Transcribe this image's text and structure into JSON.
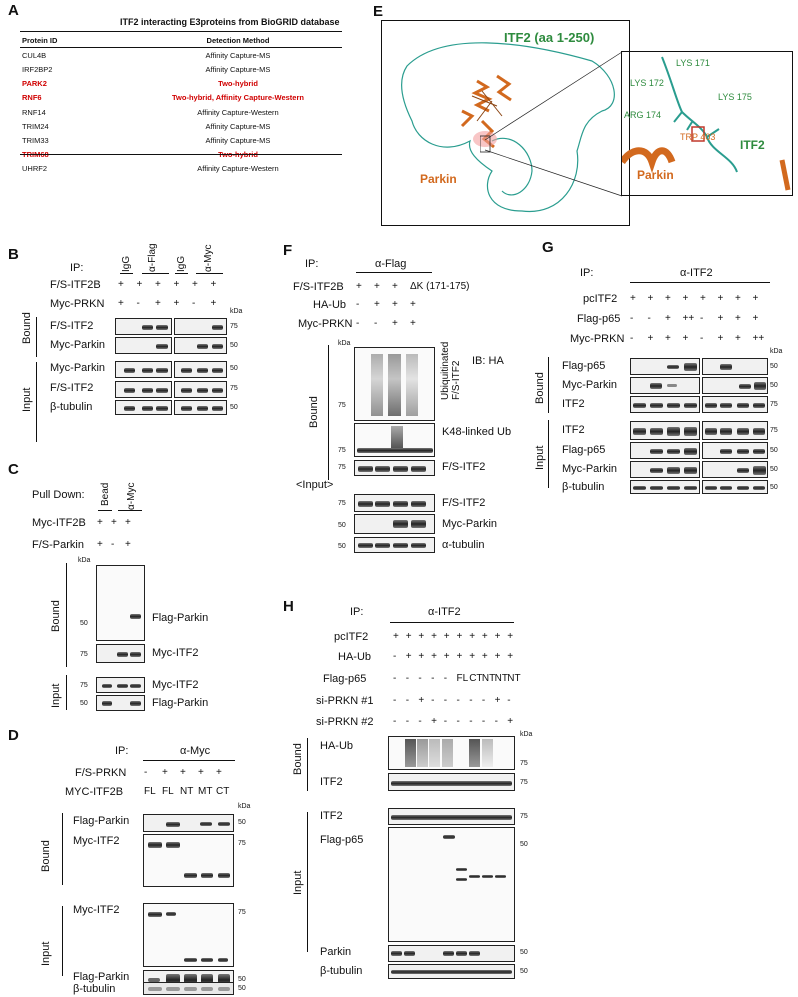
{
  "panels": {
    "A": "A",
    "B": "B",
    "C": "C",
    "D": "D",
    "E": "E",
    "F": "F",
    "G": "G",
    "H": "H"
  },
  "panelA": {
    "title": "ITF2 interacting E3proteins from BioGRID database",
    "col_protein": "Protein ID",
    "col_method": "Detection Method",
    "rows": [
      {
        "protein": "CUL4B",
        "method": "Affinity Capture-MS",
        "highlight": false
      },
      {
        "protein": "IRF2BP2",
        "method": "Affinity Capture-MS",
        "highlight": false
      },
      {
        "protein": "PARK2",
        "method": "Two-hybrid",
        "highlight": true
      },
      {
        "protein": "RNF6",
        "method": "Two-hybrid, Affinity Capture-Western",
        "highlight": true
      },
      {
        "protein": "RNF14",
        "method": "Affinity Capture-Western",
        "highlight": false
      },
      {
        "protein": "TRIM24",
        "method": "Affinity Capture-MS",
        "highlight": false
      },
      {
        "protein": "TRIM33",
        "method": "Affinity Capture-MS",
        "highlight": false
      },
      {
        "protein": "TRIM68",
        "method": "Two-hybrid",
        "highlight": true
      },
      {
        "protein": "UHRF2",
        "method": "Affinity Capture-Western",
        "highlight": false
      }
    ],
    "highlight_color": "#d00000"
  },
  "panelB": {
    "ip": "IP:",
    "lanes": [
      "IgG",
      "α-Flag",
      "IgG",
      "α-Myc"
    ],
    "row1": "F/S-ITF2B",
    "row1_vals": [
      "+",
      "+",
      "+",
      "+",
      "+",
      "+"
    ],
    "row2": "Myc-PRKN",
    "row2_vals": [
      "+",
      "-",
      "+",
      "+",
      "-",
      "+"
    ],
    "bound": "Bound",
    "input": "Input",
    "blots": [
      "F/S-ITF2",
      "Myc-Parkin",
      "Myc-Parkin",
      "F/S-ITF2",
      "β-tubulin"
    ],
    "kda": "kDa",
    "mw": [
      "75",
      "50",
      "50",
      "75",
      "50"
    ]
  },
  "panelC": {
    "pulldown": "Pull Down:",
    "lanes": [
      "Bead",
      "α-Myc"
    ],
    "row1": "Myc-ITF2B",
    "row1_vals": [
      "+",
      "+",
      "+"
    ],
    "row2": "F/S-Parkin",
    "row2_vals": [
      "+",
      "-",
      "+"
    ],
    "bound": "Bound",
    "input": "Input",
    "kda": "kDa",
    "blots": [
      "Flag-Parkin",
      "Myc-ITF2",
      "Myc-ITF2",
      "Flag-Parkin"
    ],
    "mw": [
      "50",
      "75",
      "75",
      "50"
    ]
  },
  "panelD": {
    "ip": "IP:",
    "ab": "α-Myc",
    "row1": "F/S-PRKN",
    "row1_vals": [
      "-",
      "+",
      "+",
      "+",
      "+"
    ],
    "row2": "MYC-ITF2B",
    "row2_vals": [
      "FL",
      "FL",
      "NT",
      "MT",
      "CT"
    ],
    "kda": "kDa",
    "bound": "Bound",
    "input": "Input",
    "blots": [
      "Flag-Parkin",
      "Myc-ITF2",
      "Myc-ITF2",
      "Flag-Parkin",
      "β-tubulin"
    ],
    "mw": [
      "50",
      "75",
      "75",
      "50",
      "50"
    ]
  },
  "panelE": {
    "itf2_label": "ITF2 (aa 1-250)",
    "parkin": "Parkin",
    "itf2_short": "ITF2",
    "residues": [
      "LYS 171",
      "LYS 172",
      "LYS 175",
      "ARG 174",
      "TRP 403"
    ],
    "green": "#2e8b3e",
    "orange": "#d2691e",
    "teal": "#2a9d8f"
  },
  "panelF": {
    "ip": "IP:",
    "ab": "α-Flag",
    "row1": "F/S-ITF2B",
    "row1_vals": [
      "+",
      "+",
      "+",
      "ΔK (171-175)"
    ],
    "row2": "HA-Ub",
    "row2_vals": [
      "-",
      "+",
      "+",
      "+"
    ],
    "row3": "Myc-PRKN",
    "row3_vals": [
      "-",
      "-",
      "+",
      "+"
    ],
    "kda": "kDa",
    "bound": "Bound",
    "input": "<Input>",
    "ub_label": "Ubiquitinated F/S-ITF2",
    "ib": "IB: HA",
    "k48": "K48-linked  Ub",
    "blots": [
      "F/S-ITF2",
      "F/S-ITF2",
      "Myc-Parkin",
      "α-tubulin"
    ],
    "mw": [
      "75",
      "75",
      "75",
      "75",
      "50",
      "50"
    ]
  },
  "panelG": {
    "ip": "IP:",
    "ab": "α-ITF2",
    "row1": "pcITF2",
    "row1_vals": [
      "+",
      "+",
      "+",
      "+",
      "+",
      "+",
      "+",
      "+"
    ],
    "row2": "Flag-p65",
    "row2_vals": [
      "-",
      "-",
      "+",
      "++",
      "-",
      "+",
      "+",
      "+"
    ],
    "row3": "Myc-PRKN",
    "row3_vals": [
      "-",
      "+",
      "+",
      "+",
      "-",
      "+",
      "+",
      "++"
    ],
    "kda": "kDa",
    "bound": "Bound",
    "input": "Input",
    "blots": [
      "Flag-p65",
      "Myc-Parkin",
      "ITF2",
      "ITF2",
      "Flag-p65",
      "Myc-Parkin",
      "β-tubulin"
    ],
    "mw": [
      "50",
      "50",
      "75",
      "75",
      "50",
      "50",
      "50"
    ]
  },
  "panelH": {
    "ip": "IP:",
    "ab": "α-ITF2",
    "row1": "pcITF2",
    "row1_vals": [
      "+",
      "+",
      "+",
      "+",
      "+",
      "+",
      "+",
      "+",
      "+",
      "+"
    ],
    "row2": "HA-Ub",
    "row2_vals": [
      "-",
      "+",
      "+",
      "+",
      "+",
      "+",
      "+",
      "+",
      "+",
      "+"
    ],
    "row3": "Flag-p65",
    "row3_vals": [
      "-",
      "-",
      "-",
      "-",
      "-",
      "FL",
      "CT",
      "NT",
      "NT",
      "NT"
    ],
    "row4": "si-PRKN #1",
    "row4_vals": [
      "-",
      "-",
      "+",
      "-",
      "-",
      "-",
      "-",
      "-",
      "+",
      "-"
    ],
    "row5": "si-PRKN #2",
    "row5_vals": [
      "-",
      "-",
      "-",
      "+",
      "-",
      "-",
      "-",
      "-",
      "-",
      "+"
    ],
    "kda": "kDa",
    "bound": "Bound",
    "input": "Input",
    "blots": [
      "HA-Ub",
      "ITF2",
      "ITF2",
      "Flag-p65",
      "Parkin",
      "β-tubulin"
    ],
    "mw": [
      "75",
      "75",
      "75",
      "50",
      "50",
      "50"
    ]
  }
}
